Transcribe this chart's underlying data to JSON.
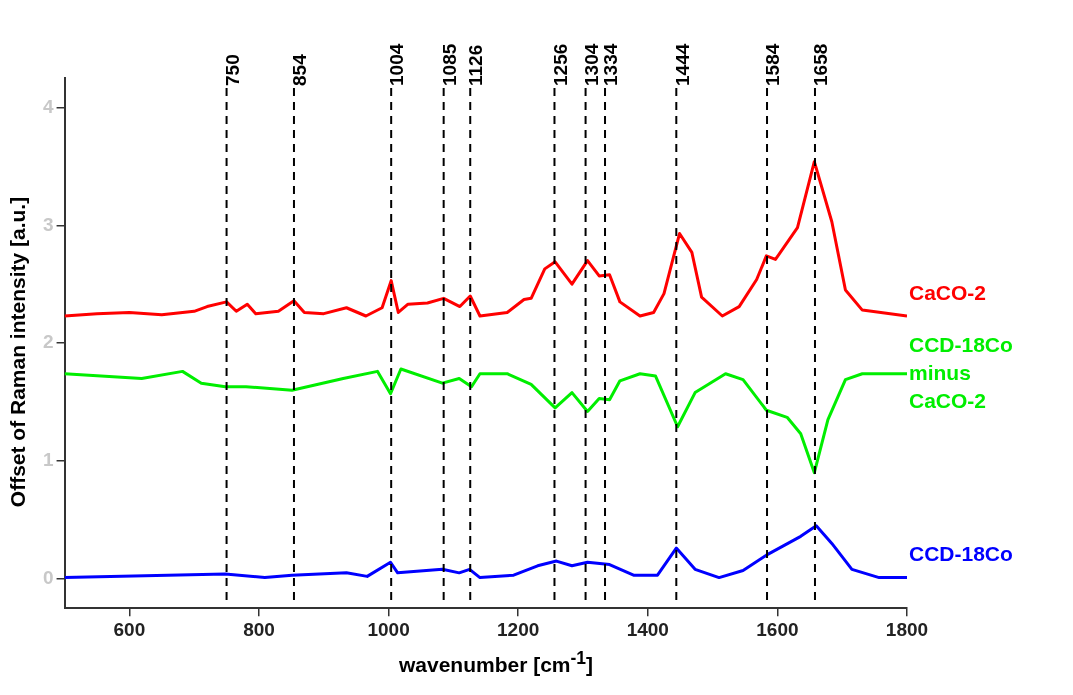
{
  "chart_data": {
    "type": "line",
    "xlabel": "wavenumber [cm$^{-1}$]",
    "ylabel": "Offset of Raman intensity [a.u.]",
    "xlim": [
      500,
      1800
    ],
    "xticks": [
      600,
      800,
      1000,
      1200,
      1400,
      1600,
      1800
    ],
    "ylim": [
      -0.25,
      4.25
    ],
    "yticks": [
      0,
      1,
      2,
      3,
      4
    ],
    "grid": false,
    "legend": false,
    "marker": "none",
    "line_style": "solid",
    "series": [
      {
        "name": "CaCO-2",
        "color": "#ff0000",
        "x": [
          500,
          550,
          600,
          650,
          700,
          720,
          750,
          765,
          782,
          795,
          830,
          854,
          870,
          900,
          935,
          965,
          990,
          1004,
          1015,
          1030,
          1060,
          1085,
          1110,
          1126,
          1141,
          1183,
          1209,
          1220,
          1241,
          1257,
          1283,
          1307,
          1325,
          1341,
          1357,
          1388,
          1409,
          1425,
          1449,
          1468,
          1483,
          1515,
          1541,
          1568,
          1583,
          1597,
          1631,
          1657,
          1684,
          1705,
          1731,
          1800
        ],
        "values": [
          2.23,
          2.25,
          2.26,
          2.24,
          2.27,
          2.31,
          2.35,
          2.27,
          2.33,
          2.25,
          2.27,
          2.36,
          2.26,
          2.25,
          2.3,
          2.23,
          2.3,
          2.53,
          2.26,
          2.33,
          2.34,
          2.38,
          2.31,
          2.4,
          2.23,
          2.26,
          2.37,
          2.38,
          2.63,
          2.69,
          2.5,
          2.7,
          2.57,
          2.58,
          2.35,
          2.23,
          2.26,
          2.42,
          2.93,
          2.77,
          2.39,
          2.23,
          2.31,
          2.54,
          2.74,
          2.71,
          2.98,
          3.54,
          3.03,
          2.45,
          2.28,
          2.23
        ]
      },
      {
        "name": "CCD-18Co minus CaCO-2",
        "color": "#00ee00",
        "x": [
          500,
          619,
          682,
          711,
          748,
          780,
          851,
          930,
          983,
          1003,
          1019,
          1083,
          1109,
          1128,
          1141,
          1183,
          1220,
          1257,
          1283,
          1307,
          1325,
          1341,
          1357,
          1388,
          1412,
          1446,
          1473,
          1520,
          1547,
          1583,
          1615,
          1636,
          1657,
          1678,
          1705,
          1731,
          1800
        ],
        "values": [
          1.74,
          1.7,
          1.76,
          1.66,
          1.63,
          1.63,
          1.6,
          1.7,
          1.76,
          1.57,
          1.78,
          1.66,
          1.7,
          1.63,
          1.74,
          1.74,
          1.65,
          1.45,
          1.58,
          1.42,
          1.53,
          1.52,
          1.68,
          1.74,
          1.72,
          1.29,
          1.58,
          1.74,
          1.69,
          1.43,
          1.37,
          1.23,
          0.9,
          1.35,
          1.69,
          1.74,
          1.74
        ]
      },
      {
        "name": "CCD-18Co",
        "color": "#0000ff",
        "x": [
          500,
          748,
          809,
          851,
          935,
          967,
          1003,
          1014,
          1083,
          1109,
          1125,
          1141,
          1193,
          1230,
          1259,
          1283,
          1307,
          1341,
          1378,
          1415,
          1444,
          1473,
          1510,
          1547,
          1583,
          1636,
          1660,
          1684,
          1715,
          1757,
          1800
        ],
        "values": [
          0.01,
          0.04,
          0.01,
          0.03,
          0.05,
          0.02,
          0.14,
          0.05,
          0.08,
          0.05,
          0.08,
          0.01,
          0.03,
          0.11,
          0.15,
          0.11,
          0.14,
          0.12,
          0.03,
          0.03,
          0.26,
          0.08,
          0.01,
          0.07,
          0.2,
          0.36,
          0.45,
          0.3,
          0.08,
          0.01,
          0.01
        ]
      }
    ],
    "ref_lines": [
      {
        "axis": "x",
        "value": 750,
        "label": "750",
        "line_style": "dashed",
        "color": "#000000"
      },
      {
        "axis": "x",
        "value": 854,
        "label": "854",
        "line_style": "dashed",
        "color": "#000000"
      },
      {
        "axis": "x",
        "value": 1004,
        "label": "1004",
        "line_style": "dashed",
        "color": "#000000"
      },
      {
        "axis": "x",
        "value": 1085,
        "label": "1085",
        "line_style": "dashed",
        "color": "#000000"
      },
      {
        "axis": "x",
        "value": 1126,
        "label": "1126",
        "line_style": "dashed",
        "color": "#000000"
      },
      {
        "axis": "x",
        "value": 1256,
        "label": "1256",
        "line_style": "dashed",
        "color": "#000000"
      },
      {
        "axis": "x",
        "value": 1304,
        "label": "1304",
        "line_style": "dashed",
        "color": "#000000"
      },
      {
        "axis": "x",
        "value": 1334,
        "label": "1334",
        "line_style": "dashed",
        "color": "#000000"
      },
      {
        "axis": "x",
        "value": 1444,
        "label": "1444",
        "line_style": "dashed",
        "color": "#000000"
      },
      {
        "axis": "x",
        "value": 1584,
        "label": "1584",
        "line_style": "dashed",
        "color": "#000000"
      },
      {
        "axis": "x",
        "value": 1658,
        "label": "1658",
        "line_style": "dashed",
        "color": "#000000"
      }
    ]
  }
}
